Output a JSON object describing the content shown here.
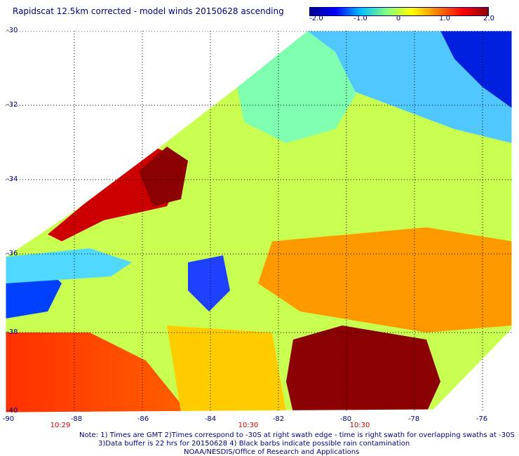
{
  "title": "Rapidscat 12.5km corrected - model winds 20150628 ascending",
  "colorbar": {
    "ticks": [
      "-2.0",
      "-1.0",
      "0",
      "1.0",
      "2.0"
    ],
    "range": [
      -2.0,
      2.0
    ],
    "colors": [
      "#00008b",
      "#0000ff",
      "#00bfff",
      "#80ff80",
      "#ffff00",
      "#ff8000",
      "#ff0000",
      "#8b0000"
    ]
  },
  "lat_labels": [
    "-30",
    "-32",
    "-34",
    "-36",
    "-38",
    "-40"
  ],
  "lon_labels": [
    "-90",
    "-88",
    "-86",
    "-84",
    "-82",
    "-80",
    "-78",
    "-76"
  ],
  "time_labels": [
    "10:29",
    "10:30",
    "10:30"
  ],
  "notes": {
    "line1": "Note: 1) Times are GMT 2)Times correspond to -30S at right swath edge - time is right swath for overlapping swaths at -30S",
    "line2": "3)Data buffer is 22 hrs for 20150628 4) Black barbs indicate possible rain contamination",
    "line3": "NOAA/NESDIS/Office of Research and Applications"
  },
  "map": {
    "lat_range": [
      -40,
      -30
    ],
    "lon_range": [
      -90,
      -75
    ],
    "grid_color": "#000000",
    "label_color": "#000080",
    "time_color": "#cc0000"
  }
}
